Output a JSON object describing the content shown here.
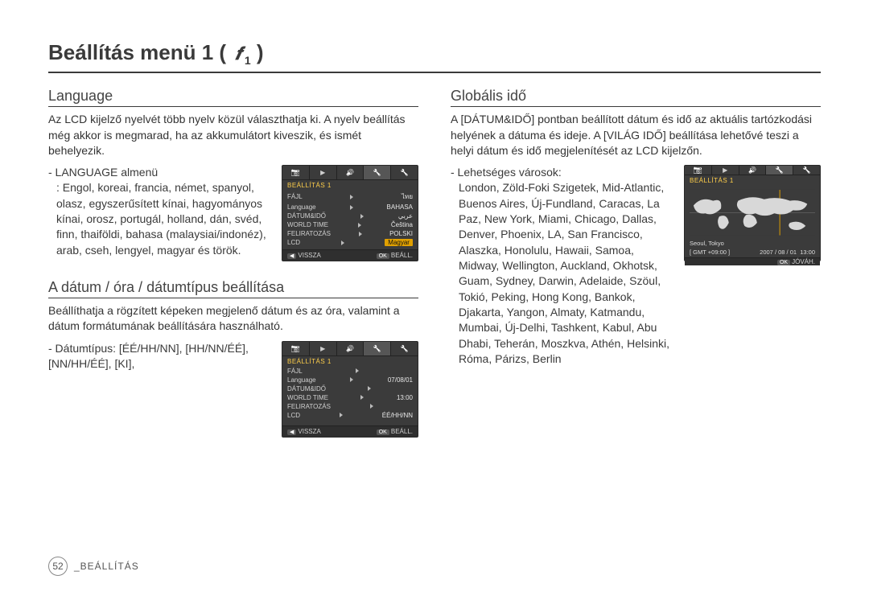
{
  "page": {
    "title": "Beállítás menü 1 (",
    "title_icon": "𝒇",
    "title_sub": "1",
    "title_close": ")",
    "footer_page": "52",
    "footer_label": "_BEÁLLÍTÁS"
  },
  "left": {
    "language": {
      "heading": "Language",
      "desc": "Az LCD kijelző nyelvét több nyelv közül választhatja ki. A nyelv beállítás még akkor is megmarad, ha az akkumulátort kiveszik, és ismét behelyezik.",
      "sublabel": "- LANGUAGE almenü",
      "subdesc": ": Engol, koreai, francia, német, spanyol, olasz, egyszerűsített kínai, hagyományos kínai, orosz, portugál, holland, dán, svéd, finn, thaiföldi, bahasa (malaysiai/indonéz), arab, cseh, lengyel, magyar és török."
    },
    "datetime": {
      "heading": "A dátum / óra / dátumtípus beállítása",
      "desc": "Beállíthatja a rögzített képeken megjelenő dátum és az óra, valamint a dátum formátumának beállítására használható.",
      "sublabel": "- Dátumtípus: [ÉÉ/HH/NN], [HH/NN/ÉÉ], [NN/HH/ÉÉ], [KI],"
    },
    "screenshot_lang": {
      "title": "BEÁLLÍTÁS 1",
      "rows": [
        {
          "l": "FÁJL",
          "r": "ไทย"
        },
        {
          "l": "Language",
          "r": "BAHASA"
        },
        {
          "l": "DÁTUM&IDŐ",
          "r": "عربي"
        },
        {
          "l": "WORLD TIME",
          "r": "Čeština"
        },
        {
          "l": "FELIRATOZÁS",
          "r": "POLSKI"
        },
        {
          "l": "LCD",
          "r": "Magyar",
          "sel": true
        }
      ],
      "footer_left": "VISSZA",
      "footer_right": "BEÁLL.",
      "footer_left_chip": "◀",
      "footer_right_chip": "OK"
    },
    "screenshot_date": {
      "title": "BEÁLLÍTÁS 1",
      "rows": [
        {
          "l": "FÁJL",
          "r": ""
        },
        {
          "l": "Language",
          "r": "07/08/01"
        },
        {
          "l": "DÁTUM&IDŐ",
          "r": ""
        },
        {
          "l": "WORLD TIME",
          "r": "13:00"
        },
        {
          "l": "FELIRATOZÁS",
          "r": ""
        },
        {
          "l": "LCD",
          "r": "ÉÉ/HH/NN"
        }
      ],
      "footer_left": "VISSZA",
      "footer_right": "BEÁLL.",
      "footer_left_chip": "◀",
      "footer_right_chip": "OK"
    }
  },
  "right": {
    "world": {
      "heading": "Globális idő",
      "desc": "A [DÁTUM&IDŐ] pontban beállított dátum és idő az aktuális tartózkodási helyének a dátuma és ideje. A [VILÁG IDŐ] beállítása lehetővé teszi a helyi dátum és idő megjelenítését az LCD kijelzőn.",
      "sublabel": "- Lehetséges városok:",
      "cities": "London, Zöld-Foki Szigetek, Mid-Atlantic, Buenos Aires, Új-Fundland, Caracas, La Paz, New York, Miami, Chicago, Dallas, Denver, Phoenix, LA, San Francisco, Alaszka, Honolulu, Hawaii, Samoa, Midway, Wellington, Auckland, Okhotsk, Guam, Sydney, Darwin, Adelaide, Szöul, Tokió, Peking, Hong Kong, Bankok, Djakarta, Yangon, Almaty, Katmandu, Mumbai, Új-Delhi, Tashkent, Kabul, Abu Dhabi, Teherán, Moszkva, Athén, Helsinki, Róma, Párizs, Berlin"
    },
    "screenshot_world": {
      "title": "BEÁLLÍTÁS 1",
      "city": "Seoul, Tokyo",
      "tz": "[ GMT +09:00 ]",
      "date": "2007 / 08 / 01",
      "time": "13:00",
      "footer_right": "JÓVÁH.",
      "footer_right_chip": "OK"
    }
  },
  "colors": {
    "text": "#3a3a3a",
    "rule": "#3a3a3a",
    "ss_bg": "#3b3b3b",
    "ss_accent": "#e0a000",
    "ss_title": "#ffcf4a"
  }
}
